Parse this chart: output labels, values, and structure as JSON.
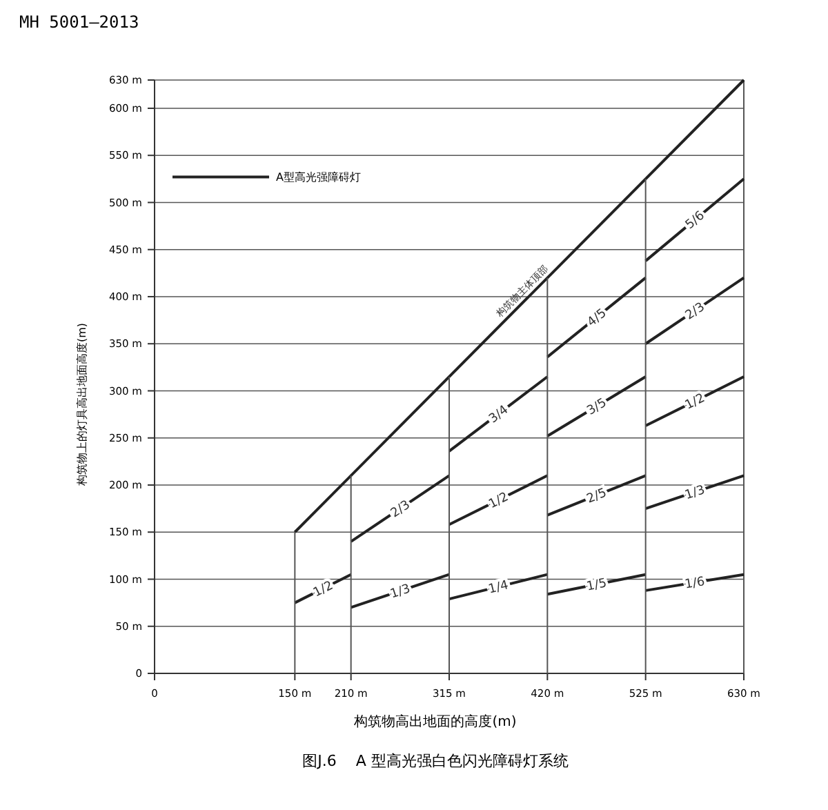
{
  "chart_data": {
    "type": "line",
    "title": "图J.6    A 型高光强白色闪光障碍灯系统",
    "annotations": [
      "MH 5001—2013"
    ],
    "xlabel": "构筑物高出地面的高度(m)",
    "ylabel": "构筑物上的灯具高出地面高度(m)",
    "legend_title": "A型高光强障碍灯",
    "grid": "y",
    "xlim": [
      0,
      630
    ],
    "ylim": [
      0,
      630
    ],
    "xticks": [
      0,
      {
        "value": 150,
        "label": "150 m"
      },
      {
        "value": 210,
        "label": "210 m"
      },
      {
        "value": 315,
        "label": "315 m"
      },
      {
        "value": 420,
        "label": "420 m"
      },
      {
        "value": 525,
        "label": "525 m"
      },
      {
        "value": 630,
        "label": "630 m"
      }
    ],
    "yticks": [
      0,
      {
        "value": 50,
        "label": "50 m"
      },
      {
        "value": 100,
        "label": "100 m"
      },
      {
        "value": 150,
        "label": "150 m"
      },
      {
        "value": 200,
        "label": "200 m"
      },
      {
        "value": 250,
        "label": "250 m"
      },
      {
        "value": 300,
        "label": "300 m"
      },
      {
        "value": 350,
        "label": "350 m"
      },
      {
        "value": 400,
        "label": "400 m"
      },
      {
        "value": 450,
        "label": "450 m"
      },
      {
        "value": 500,
        "label": "500 m"
      },
      {
        "value": 550,
        "label": "550 m"
      },
      {
        "value": 600,
        "label": "600 m"
      },
      {
        "value": 630,
        "label": "630 m"
      }
    ],
    "series": [
      {
        "name": "构筑物主体顶部",
        "color": "#222222",
        "x": [
          150,
          630
        ],
        "values": [
          150,
          630
        ]
      },
      {
        "name": "1/2",
        "color": "#222222",
        "x": [
          150,
          210
        ],
        "values": [
          75,
          105
        ]
      },
      {
        "name": "1/3",
        "color": "#222222",
        "x": [
          210,
          315
        ],
        "values": [
          70,
          105
        ]
      },
      {
        "name": "2/3",
        "color": "#222222",
        "x": [
          210,
          315
        ],
        "values": [
          140,
          210
        ]
      },
      {
        "name": "1/4",
        "color": "#222222",
        "x": [
          315,
          420
        ],
        "values": [
          79,
          105
        ]
      },
      {
        "name": "1/2",
        "color": "#222222",
        "x": [
          315,
          420
        ],
        "values": [
          158,
          210
        ]
      },
      {
        "name": "3/4",
        "color": "#222222",
        "x": [
          315,
          420
        ],
        "values": [
          236,
          315
        ]
      },
      {
        "name": "1/5",
        "color": "#222222",
        "x": [
          420,
          525
        ],
        "values": [
          84,
          105
        ]
      },
      {
        "name": "2/5",
        "color": "#222222",
        "x": [
          420,
          525
        ],
        "values": [
          168,
          210
        ]
      },
      {
        "name": "3/5",
        "color": "#222222",
        "x": [
          420,
          525
        ],
        "values": [
          252,
          315
        ]
      },
      {
        "name": "4/5",
        "color": "#222222",
        "x": [
          420,
          525
        ],
        "values": [
          336,
          420
        ]
      },
      {
        "name": "1/6",
        "color": "#222222",
        "x": [
          525,
          630
        ],
        "values": [
          88,
          105
        ]
      },
      {
        "name": "1/3",
        "color": "#222222",
        "x": [
          525,
          630
        ],
        "values": [
          175,
          210
        ]
      },
      {
        "name": "1/2",
        "color": "#222222",
        "x": [
          525,
          630
        ],
        "values": [
          263,
          315
        ]
      },
      {
        "name": "2/3",
        "color": "#222222",
        "x": [
          525,
          630
        ],
        "values": [
          350,
          420
        ]
      },
      {
        "name": "5/6",
        "color": "#222222",
        "x": [
          525,
          630
        ],
        "values": [
          438,
          525
        ]
      },
      {
        "color": "#555555",
        "x": [
          150,
          150
        ],
        "values": [
          0,
          150
        ]
      },
      {
        "color": "#555555",
        "x": [
          210,
          210
        ],
        "values": [
          0,
          210
        ]
      },
      {
        "color": "#555555",
        "x": [
          315,
          315
        ],
        "values": [
          0,
          315
        ]
      },
      {
        "color": "#555555",
        "x": [
          420,
          420
        ],
        "values": [
          0,
          420
        ]
      },
      {
        "color": "#555555",
        "x": [
          525,
          525
        ],
        "values": [
          0,
          525
        ]
      }
    ]
  }
}
